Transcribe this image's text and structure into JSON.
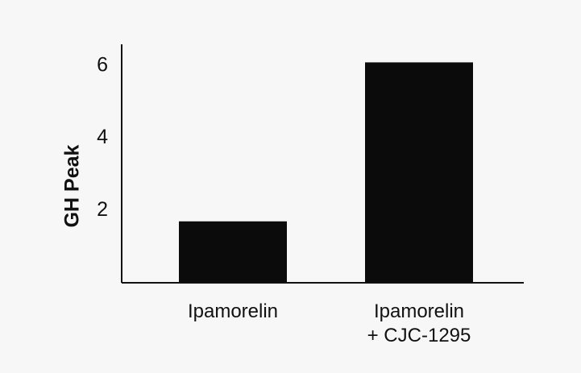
{
  "chart_data": {
    "type": "bar",
    "categories": [
      [
        "Ipamorelin"
      ],
      [
        "Ipamorelin",
        "+ CJC-1295"
      ]
    ],
    "values": [
      1.7,
      6.1
    ],
    "title": "",
    "xlabel": "",
    "ylabel": "GH Peak",
    "ylim": [
      0,
      6.6
    ],
    "yticks": [
      2,
      4,
      6
    ],
    "grid": false,
    "colors": {
      "bar": "#0b0b0b",
      "axis": "#111111",
      "text": "#111111",
      "background": "#f7f7f7"
    }
  }
}
